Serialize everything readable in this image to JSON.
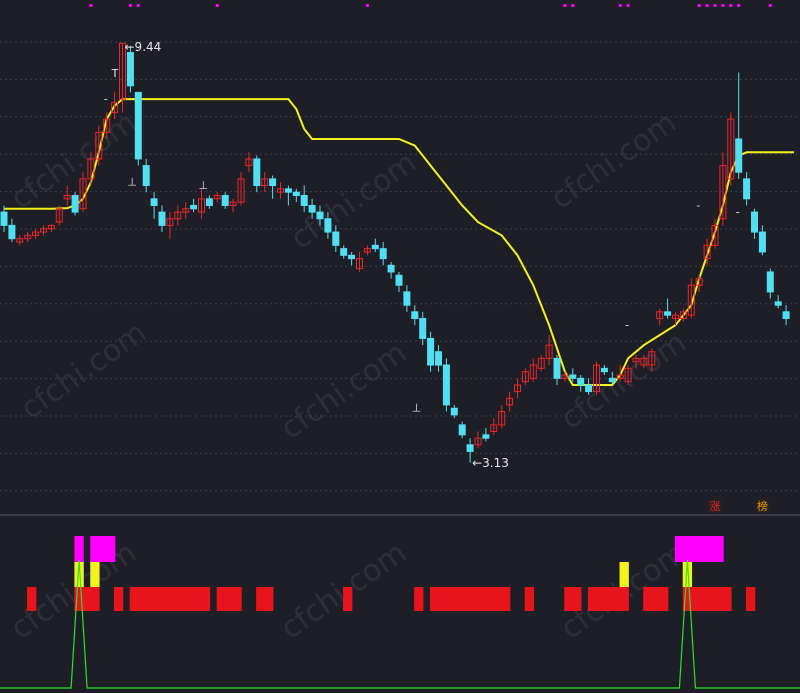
{
  "chart_data": [
    {
      "type": "candlestick",
      "ylim": [
        2.6,
        10.0
      ],
      "max_label": "9.44",
      "min_label": "3.13",
      "x_count": 100,
      "colors": {
        "up": "#e8262c",
        "down": "#52dff2",
        "ma": "#f2f21e",
        "grid": "#3c3e48",
        "dot": "#ff00ff"
      },
      "candles": [
        [
          6.9,
          6.7,
          7.0,
          6.6
        ],
        [
          6.7,
          6.5,
          6.8,
          6.45
        ],
        [
          6.45,
          6.5,
          6.55,
          6.4
        ],
        [
          6.5,
          6.55,
          6.6,
          6.45
        ],
        [
          6.55,
          6.6,
          6.65,
          6.5
        ],
        [
          6.6,
          6.65,
          6.7,
          6.55
        ],
        [
          6.65,
          6.7,
          6.72,
          6.6
        ],
        [
          6.75,
          6.95,
          7.0,
          6.7
        ],
        [
          7.1,
          7.15,
          7.3,
          7.0
        ],
        [
          7.15,
          6.9,
          7.2,
          6.85
        ],
        [
          6.95,
          7.4,
          7.5,
          6.9
        ],
        [
          7.4,
          7.7,
          7.8,
          7.3
        ],
        [
          7.7,
          8.1,
          8.2,
          7.6
        ],
        [
          8.1,
          8.3,
          8.4,
          8.0
        ],
        [
          8.4,
          8.55,
          8.7,
          8.3
        ],
        [
          8.6,
          9.44,
          9.44,
          8.4
        ],
        [
          9.3,
          8.8,
          9.4,
          8.7
        ],
        [
          8.7,
          7.7,
          8.7,
          7.6
        ],
        [
          7.6,
          7.3,
          7.7,
          7.2
        ],
        [
          7.1,
          7.0,
          7.2,
          6.8
        ],
        [
          6.9,
          6.7,
          7.0,
          6.6
        ],
        [
          6.7,
          6.8,
          6.9,
          6.5
        ],
        [
          6.8,
          6.9,
          7.0,
          6.7
        ],
        [
          6.9,
          6.95,
          7.05,
          6.8
        ],
        [
          7.0,
          6.95,
          7.1,
          6.9
        ],
        [
          6.9,
          7.1,
          7.25,
          6.8
        ],
        [
          7.1,
          7.0,
          7.15,
          6.95
        ],
        [
          7.1,
          7.15,
          7.2,
          7.05
        ],
        [
          7.15,
          7.0,
          7.2,
          6.95
        ],
        [
          7.0,
          7.05,
          7.1,
          6.9
        ],
        [
          7.05,
          7.4,
          7.5,
          7.0
        ],
        [
          7.6,
          7.7,
          7.8,
          7.5
        ],
        [
          7.7,
          7.3,
          7.75,
          7.2
        ],
        [
          7.3,
          7.4,
          7.5,
          7.2
        ],
        [
          7.4,
          7.3,
          7.45,
          7.1
        ],
        [
          7.2,
          7.25,
          7.35,
          7.1
        ],
        [
          7.25,
          7.2,
          7.3,
          7.0
        ],
        [
          7.2,
          7.15,
          7.25,
          7.05
        ],
        [
          7.15,
          7.0,
          7.3,
          6.9
        ],
        [
          7.0,
          6.9,
          7.1,
          6.8
        ],
        [
          6.9,
          6.8,
          7.0,
          6.7
        ],
        [
          6.8,
          6.6,
          6.9,
          6.5
        ],
        [
          6.6,
          6.4,
          6.7,
          6.3
        ],
        [
          6.35,
          6.25,
          6.4,
          6.2
        ],
        [
          6.25,
          6.2,
          6.3,
          6.1
        ],
        [
          6.05,
          6.2,
          6.3,
          6.0
        ],
        [
          6.3,
          6.35,
          6.4,
          6.25
        ],
        [
          6.4,
          6.35,
          6.5,
          6.3
        ],
        [
          6.35,
          6.2,
          6.45,
          6.1
        ],
        [
          6.1,
          6.0,
          6.15,
          5.9
        ],
        [
          5.95,
          5.8,
          6.0,
          5.7
        ],
        [
          5.7,
          5.5,
          5.8,
          5.4
        ],
        [
          5.4,
          5.3,
          5.5,
          5.2
        ],
        [
          5.3,
          5.0,
          5.4,
          4.9
        ],
        [
          5.0,
          4.6,
          5.1,
          4.5
        ],
        [
          4.8,
          4.6,
          4.9,
          4.5
        ],
        [
          4.6,
          4.0,
          4.7,
          3.9
        ],
        [
          3.95,
          3.85,
          4.0,
          3.8
        ],
        [
          3.7,
          3.55,
          3.75,
          3.5
        ],
        [
          3.4,
          3.3,
          3.5,
          3.13
        ],
        [
          3.4,
          3.5,
          3.6,
          3.35
        ],
        [
          3.55,
          3.5,
          3.65,
          3.45
        ],
        [
          3.6,
          3.7,
          3.8,
          3.55
        ],
        [
          3.7,
          3.9,
          4.0,
          3.65
        ],
        [
          4.0,
          4.1,
          4.2,
          3.9
        ],
        [
          4.2,
          4.3,
          4.4,
          4.1
        ],
        [
          4.35,
          4.5,
          4.55,
          4.3
        ],
        [
          4.4,
          4.6,
          4.7,
          4.35
        ],
        [
          4.55,
          4.7,
          4.75,
          4.5
        ],
        [
          4.7,
          4.9,
          5.05,
          4.6
        ],
        [
          4.7,
          4.4,
          4.75,
          4.3
        ],
        [
          4.4,
          4.45,
          4.5,
          4.35
        ],
        [
          4.45,
          4.4,
          4.55,
          4.35
        ],
        [
          4.4,
          4.3,
          4.45,
          4.2
        ],
        [
          4.3,
          4.2,
          4.4,
          4.15
        ],
        [
          4.2,
          4.6,
          4.65,
          4.15
        ],
        [
          4.55,
          4.5,
          4.6,
          4.45
        ],
        [
          4.4,
          4.35,
          4.5,
          4.3
        ],
        [
          4.4,
          4.45,
          4.6,
          4.35
        ],
        [
          4.35,
          4.55,
          4.6,
          4.3
        ],
        [
          4.65,
          4.7,
          4.75,
          4.55
        ],
        [
          4.6,
          4.7,
          4.75,
          4.55
        ],
        [
          4.6,
          4.8,
          4.85,
          4.5
        ],
        [
          5.3,
          5.4,
          5.45,
          5.2
        ],
        [
          5.4,
          5.35,
          5.6,
          5.3
        ],
        [
          5.3,
          5.35,
          5.4,
          5.2
        ],
        [
          5.3,
          5.4,
          5.45,
          5.25
        ],
        [
          5.35,
          5.8,
          5.9,
          5.3
        ],
        [
          5.8,
          5.9,
          5.95,
          5.7
        ],
        [
          6.2,
          6.4,
          6.5,
          6.1
        ],
        [
          6.4,
          6.7,
          6.8,
          6.35
        ],
        [
          6.8,
          7.6,
          7.8,
          6.7
        ],
        [
          7.4,
          8.3,
          8.4,
          7.3
        ],
        [
          8.0,
          7.5,
          9.0,
          7.4
        ],
        [
          7.4,
          7.1,
          7.5,
          7.0
        ],
        [
          6.9,
          6.6,
          6.95,
          6.5
        ],
        [
          6.6,
          6.3,
          6.7,
          6.25
        ],
        [
          6.0,
          5.7,
          6.05,
          5.6
        ],
        [
          5.55,
          5.5,
          5.65,
          5.45
        ],
        [
          5.4,
          5.3,
          5.5,
          5.2
        ]
      ],
      "ma": [
        [
          0,
          6.95
        ],
        [
          6,
          6.95
        ],
        [
          8,
          6.96
        ],
        [
          9,
          7.0
        ],
        [
          10,
          7.1
        ],
        [
          11,
          7.35
        ],
        [
          12,
          7.8
        ],
        [
          13,
          8.3
        ],
        [
          14,
          8.5
        ],
        [
          15,
          8.6
        ],
        [
          20,
          8.6
        ],
        [
          36,
          8.6
        ],
        [
          37,
          8.45
        ],
        [
          38,
          8.15
        ],
        [
          39,
          8.0
        ],
        [
          50,
          8.0
        ],
        [
          52,
          7.9
        ],
        [
          54,
          7.6
        ],
        [
          56,
          7.3
        ],
        [
          58,
          7.0
        ],
        [
          60,
          6.75
        ],
        [
          63,
          6.55
        ],
        [
          65,
          6.25
        ],
        [
          67,
          5.8
        ],
        [
          69,
          5.2
        ],
        [
          71,
          4.5
        ],
        [
          72,
          4.3
        ],
        [
          77,
          4.3
        ],
        [
          78,
          4.45
        ],
        [
          79,
          4.7
        ],
        [
          81,
          4.9
        ],
        [
          83,
          5.05
        ],
        [
          85,
          5.2
        ],
        [
          87,
          5.5
        ],
        [
          88,
          5.9
        ],
        [
          90,
          6.6
        ],
        [
          91,
          7.0
        ],
        [
          92,
          7.5
        ],
        [
          93,
          7.75
        ],
        [
          94,
          7.8
        ],
        [
          100,
          7.8
        ]
      ],
      "annotations": [
        {
          "text": "T",
          "x": 14,
          "y": 8.93
        },
        {
          "text": "-",
          "x": 13,
          "y": 8.55
        },
        {
          "text": "⊥",
          "x": 16,
          "y": 7.3
        },
        {
          "text": "⊥",
          "x": 25,
          "y": 7.25
        },
        {
          "text": "⊥",
          "x": 52,
          "y": 3.9
        },
        {
          "text": "-",
          "x": 79,
          "y": 5.15
        },
        {
          "text": "-",
          "x": 88,
          "y": 6.95
        },
        {
          "text": "-",
          "x": 93,
          "y": 6.85
        }
      ],
      "top_dots": [
        11,
        16,
        17,
        27,
        46,
        71,
        72,
        78,
        79,
        88,
        89,
        90,
        91,
        92,
        93,
        97
      ],
      "tags": [
        {
          "text": "涨",
          "x": 90,
          "color": "#e8262c"
        },
        {
          "text": "榜",
          "x": 96,
          "color": "#e8a000"
        }
      ]
    },
    {
      "type": "bar",
      "red_bars": [
        3,
        9,
        10,
        11,
        14,
        16,
        17,
        18,
        19,
        20,
        21,
        22,
        23,
        24,
        25,
        27,
        28,
        29,
        32,
        33,
        43,
        52,
        54,
        55,
        56,
        57,
        58,
        59,
        60,
        61,
        62,
        63,
        66,
        71,
        72,
        74,
        75,
        76,
        77,
        78,
        81,
        82,
        83,
        86,
        87,
        88,
        89,
        90,
        91,
        94
      ],
      "yellow_bars": [
        9,
        11,
        78,
        86
      ],
      "magenta_bars": [
        9,
        11,
        12,
        13,
        85,
        86,
        87,
        88,
        89,
        90
      ],
      "green_peaks": [
        9,
        86
      ]
    }
  ],
  "watermark": "cfchi.com"
}
